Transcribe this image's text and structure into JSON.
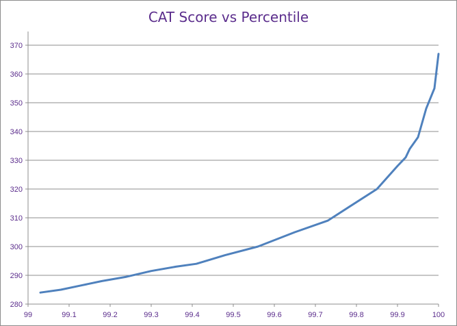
{
  "chart_data": {
    "type": "line",
    "title": "CAT Score vs Percentile",
    "xlabel": "",
    "ylabel": "",
    "xlim": [
      99,
      100
    ],
    "ylim": [
      280,
      370
    ],
    "x_ticks": [
      "99",
      "99.1",
      "99.2",
      "99.3",
      "99.4",
      "99.5",
      "99.6",
      "99.7",
      "99.8",
      "99.9",
      "100"
    ],
    "y_ticks": [
      "280",
      "290",
      "300",
      "310",
      "320",
      "330",
      "340",
      "350",
      "360",
      "370"
    ],
    "grid": "horizontal",
    "legend": "none",
    "series": [
      {
        "color": "#4f81bd",
        "x": [
          99.03,
          99.08,
          99.13,
          99.18,
          99.24,
          99.3,
          99.36,
          99.41,
          99.48,
          99.56,
          99.65,
          99.73,
          99.85,
          99.9,
          99.92,
          99.93,
          99.95,
          99.97,
          99.99,
          100.0
        ],
        "y": [
          284,
          285,
          286.5,
          288,
          289.5,
          291.5,
          293,
          294,
          297,
          300,
          305,
          309,
          320,
          328,
          331,
          334,
          338,
          348,
          355,
          367
        ]
      }
    ]
  }
}
